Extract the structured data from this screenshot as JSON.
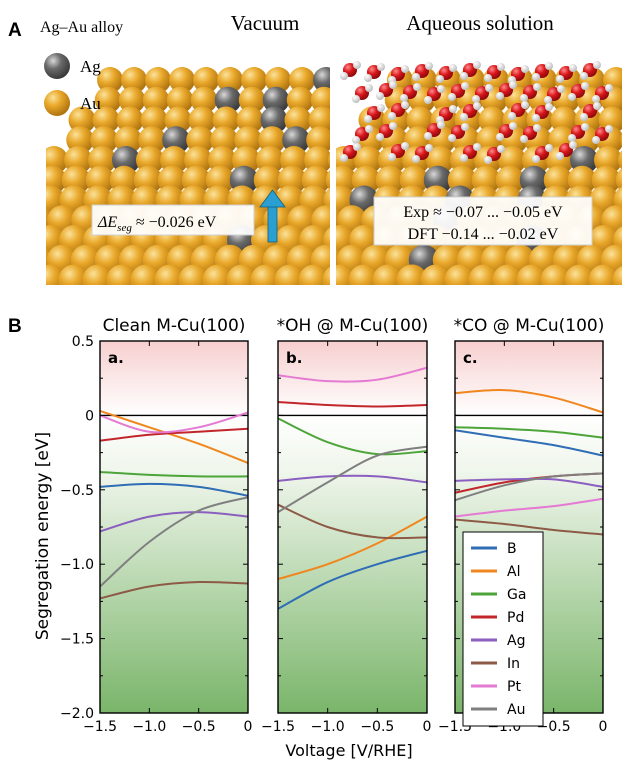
{
  "panel_a": {
    "label": "A",
    "alloy_title": "Ag–Au alloy",
    "legend": [
      {
        "symbol": "Ag",
        "color": "#6f6f6f"
      },
      {
        "symbol": "Au",
        "color": "#e3a21a"
      }
    ],
    "vacuum": {
      "title": "Vacuum",
      "annotation_sym": "ΔE",
      "annotation_sub": "seg",
      "annotation_val": " ≈ −0.026 eV",
      "arrow_color": "#2b9fd1"
    },
    "aqueous": {
      "title": "Aqueous solution",
      "exp_line": "Exp ≈ −0.07 ... −0.05 eV",
      "dft_line": "DFT −0.14 ... −0.02 eV"
    }
  },
  "panel_b": {
    "label": "B",
    "ylabel": "Segregation energy [eV]",
    "xlabel": "Voltage [V/RHE]",
    "xticks": [
      "−1.5",
      "−1.0",
      "−0.5",
      "0"
    ],
    "yticks": [
      "0.5",
      "0",
      "−0.5",
      "−1.0",
      "−1.5",
      "−2.0"
    ]
  },
  "chart_data": [
    {
      "type": "line",
      "title": "Clean M-Cu(100)",
      "panel_tag": "a.",
      "xlim": [
        -1.5,
        0
      ],
      "ylim": [
        -2.0,
        0.5
      ],
      "series": [
        {
          "name": "B",
          "color": "#2f6db5",
          "x": [
            -1.5,
            -1.0,
            -0.5,
            0
          ],
          "y": [
            -0.48,
            -0.46,
            -0.48,
            -0.54
          ]
        },
        {
          "name": "Al",
          "color": "#f0861e",
          "x": [
            -1.5,
            -1.0,
            -0.5,
            0
          ],
          "y": [
            0.03,
            -0.08,
            -0.19,
            -0.32
          ]
        },
        {
          "name": "Ga",
          "color": "#4da53a",
          "x": [
            -1.5,
            -1.0,
            -0.5,
            0
          ],
          "y": [
            -0.38,
            -0.4,
            -0.41,
            -0.41
          ]
        },
        {
          "name": "Pd",
          "color": "#c2262b",
          "x": [
            -1.5,
            -1.0,
            -0.5,
            0
          ],
          "y": [
            -0.17,
            -0.13,
            -0.11,
            -0.09
          ]
        },
        {
          "name": "Ag",
          "color": "#8a5fc0",
          "x": [
            -1.5,
            -1.0,
            -0.5,
            0
          ],
          "y": [
            -0.78,
            -0.68,
            -0.65,
            -0.68
          ]
        },
        {
          "name": "In",
          "color": "#8d5a46",
          "x": [
            -1.5,
            -1.0,
            -0.5,
            0
          ],
          "y": [
            -1.23,
            -1.15,
            -1.12,
            -1.13
          ]
        },
        {
          "name": "Pt",
          "color": "#e47ad3",
          "x": [
            -1.5,
            -1.0,
            -0.5,
            0
          ],
          "y": [
            0.0,
            -0.11,
            -0.08,
            0.02
          ]
        },
        {
          "name": "Au",
          "color": "#7f7f7f",
          "x": [
            -1.5,
            -1.0,
            -0.5,
            0
          ],
          "y": [
            -1.15,
            -0.85,
            -0.64,
            -0.55
          ]
        }
      ]
    },
    {
      "type": "line",
      "title": "*OH @ M-Cu(100)",
      "panel_tag": "b.",
      "xlim": [
        -1.5,
        0
      ],
      "ylim": [
        -2.0,
        0.5
      ],
      "series": [
        {
          "name": "B",
          "color": "#2f6db5",
          "x": [
            -1.5,
            -1.0,
            -0.5,
            0
          ],
          "y": [
            -1.3,
            -1.12,
            -1.0,
            -0.91
          ]
        },
        {
          "name": "Al",
          "color": "#f0861e",
          "x": [
            -1.5,
            -1.0,
            -0.5,
            0
          ],
          "y": [
            -1.1,
            -1.0,
            -0.86,
            -0.68
          ]
        },
        {
          "name": "Ga",
          "color": "#4da53a",
          "x": [
            -1.5,
            -1.0,
            -0.5,
            0
          ],
          "y": [
            -0.02,
            -0.18,
            -0.26,
            -0.24
          ]
        },
        {
          "name": "Pd",
          "color": "#c2262b",
          "x": [
            -1.5,
            -1.0,
            -0.5,
            0
          ],
          "y": [
            0.09,
            0.07,
            0.06,
            0.07
          ]
        },
        {
          "name": "Ag",
          "color": "#8a5fc0",
          "x": [
            -1.5,
            -1.0,
            -0.5,
            0
          ],
          "y": [
            -0.44,
            -0.41,
            -0.41,
            -0.45
          ]
        },
        {
          "name": "In",
          "color": "#8d5a46",
          "x": [
            -1.5,
            -1.0,
            -0.5,
            0
          ],
          "y": [
            -0.6,
            -0.75,
            -0.82,
            -0.82
          ]
        },
        {
          "name": "Pt",
          "color": "#e47ad3",
          "x": [
            -1.5,
            -1.0,
            -0.5,
            0
          ],
          "y": [
            0.27,
            0.23,
            0.24,
            0.32
          ]
        },
        {
          "name": "Au",
          "color": "#7f7f7f",
          "x": [
            -1.5,
            -1.0,
            -0.5,
            0
          ],
          "y": [
            -0.65,
            -0.45,
            -0.27,
            -0.21
          ]
        }
      ]
    },
    {
      "type": "line",
      "title": "*CO @ M-Cu(100)",
      "panel_tag": "c.",
      "xlim": [
        -1.5,
        0
      ],
      "ylim": [
        -2.0,
        0.5
      ],
      "series": [
        {
          "name": "B",
          "color": "#2f6db5",
          "x": [
            -1.5,
            -1.0,
            -0.5,
            0
          ],
          "y": [
            -0.1,
            -0.15,
            -0.2,
            -0.27
          ]
        },
        {
          "name": "Al",
          "color": "#f0861e",
          "x": [
            -1.5,
            -1.0,
            -0.5,
            0
          ],
          "y": [
            0.15,
            0.17,
            0.12,
            0.02
          ]
        },
        {
          "name": "Ga",
          "color": "#4da53a",
          "x": [
            -1.5,
            -1.0,
            -0.5,
            0
          ],
          "y": [
            -0.08,
            -0.09,
            -0.11,
            -0.15
          ]
        },
        {
          "name": "Pd",
          "color": "#c2262b",
          "x": [
            -1.5,
            -1.0,
            -0.5,
            0
          ],
          "y": [
            -0.52,
            -0.45,
            -0.41,
            -0.39
          ]
        },
        {
          "name": "Ag",
          "color": "#8a5fc0",
          "x": [
            -1.5,
            -1.0,
            -0.5,
            0
          ],
          "y": [
            -0.44,
            -0.43,
            -0.43,
            -0.48
          ]
        },
        {
          "name": "In",
          "color": "#8d5a46",
          "x": [
            -1.5,
            -1.0,
            -0.5,
            0
          ],
          "y": [
            -0.7,
            -0.73,
            -0.77,
            -0.8
          ]
        },
        {
          "name": "Pt",
          "color": "#e47ad3",
          "x": [
            -1.5,
            -1.0,
            -0.5,
            0
          ],
          "y": [
            -0.68,
            -0.64,
            -0.61,
            -0.56
          ]
        },
        {
          "name": "Au",
          "color": "#7f7f7f",
          "x": [
            -1.5,
            -1.0,
            -0.5,
            0
          ],
          "y": [
            -0.57,
            -0.47,
            -0.41,
            -0.39
          ]
        }
      ]
    }
  ]
}
